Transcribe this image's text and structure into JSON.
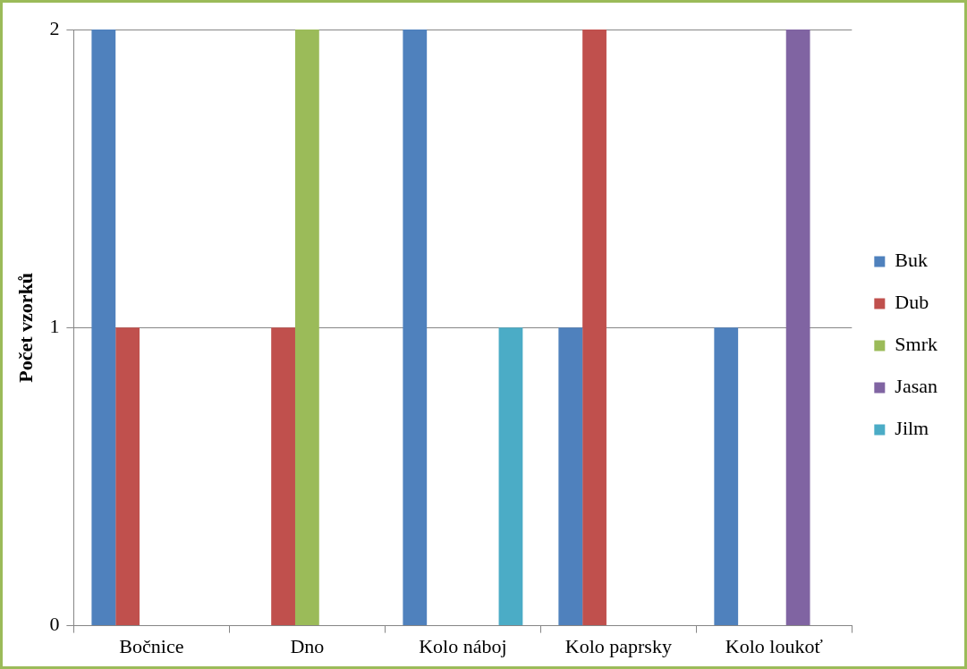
{
  "chart_data": {
    "type": "bar",
    "ylabel": "Počet vzorků",
    "categories": [
      "Bočnice",
      "Dno",
      "Kolo náboj",
      "Kolo paprsky",
      "Kolo loukoť"
    ],
    "series": [
      {
        "name": "Buk",
        "color": "#4f81bd",
        "values": [
          2,
          0,
          2,
          1,
          1
        ]
      },
      {
        "name": "Dub",
        "color": "#c0504d",
        "values": [
          1,
          1,
          0,
          2,
          0
        ]
      },
      {
        "name": "Smrk",
        "color": "#9bbb59",
        "values": [
          0,
          2,
          0,
          0,
          0
        ]
      },
      {
        "name": "Jasan",
        "color": "#8064a2",
        "values": [
          0,
          0,
          0,
          0,
          2
        ]
      },
      {
        "name": "Jilm",
        "color": "#4bacc6",
        "values": [
          0,
          0,
          1,
          0,
          0
        ]
      }
    ],
    "ylim": [
      0,
      2
    ],
    "yticks": [
      0,
      1,
      2
    ],
    "grid": "y",
    "legend": "right"
  }
}
